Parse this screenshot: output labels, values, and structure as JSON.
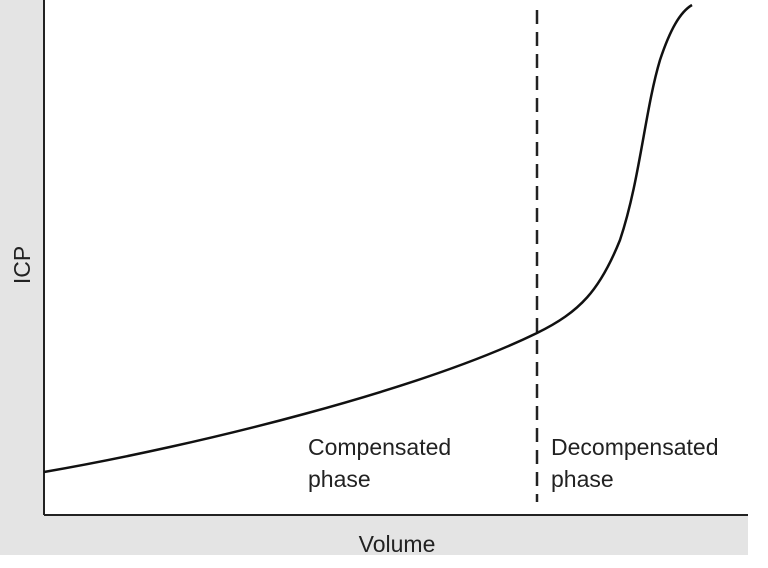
{
  "axes": {
    "x_label": "Volume",
    "y_label": "ICP"
  },
  "regions": [
    {
      "label_line1": "Compensated",
      "label_line2": "phase"
    },
    {
      "label_line1": "Decompensated",
      "label_line2": "phase"
    }
  ]
}
